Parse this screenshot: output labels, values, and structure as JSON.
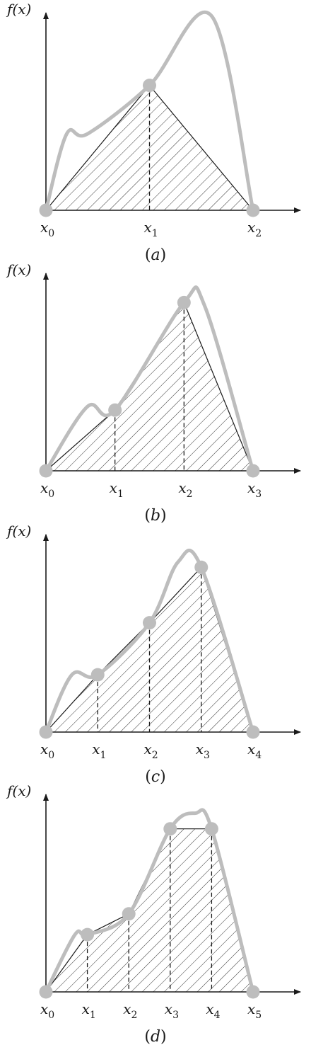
{
  "y_axis_label": "f(x)",
  "x_symbol": "x",
  "colors": {
    "curve": "#bdbdbd",
    "ink": "#1a1a1a",
    "hatch": "#333333",
    "node": "#bdbdbd"
  },
  "panels": [
    {
      "caption": "(a)",
      "curve": [
        [
          0,
          0.0
        ],
        [
          0.2,
          0.44
        ],
        [
          0.4,
          0.44
        ],
        [
          1.0,
          0.72
        ],
        [
          1.6,
          1.12
        ],
        [
          2.0,
          0.0
        ]
      ],
      "nodes": [
        {
          "sub": "0",
          "x": 0.0,
          "y": 0.0
        },
        {
          "sub": "1",
          "x": 1.0,
          "y": 0.72
        },
        {
          "sub": "2",
          "x": 2.0,
          "y": 0.0
        }
      ]
    },
    {
      "caption": "(b)",
      "curve": [
        [
          0,
          0.0
        ],
        [
          0.6,
          0.37
        ],
        [
          1.0,
          0.35
        ],
        [
          2.0,
          0.97
        ],
        [
          2.3,
          0.95
        ],
        [
          3.0,
          0.0
        ]
      ],
      "nodes": [
        {
          "sub": "0",
          "x": 0.0,
          "y": 0.0
        },
        {
          "sub": "1",
          "x": 1.0,
          "y": 0.35
        },
        {
          "sub": "2",
          "x": 2.0,
          "y": 0.97
        },
        {
          "sub": "3",
          "x": 3.0,
          "y": 0.0
        }
      ]
    },
    {
      "caption": "(c)",
      "curve": [
        [
          0,
          0.0
        ],
        [
          0.5,
          0.33
        ],
        [
          1.0,
          0.33
        ],
        [
          2.0,
          0.63
        ],
        [
          2.55,
          0.98
        ],
        [
          3.0,
          0.95
        ],
        [
          4.0,
          0.0
        ]
      ],
      "nodes": [
        {
          "sub": "0",
          "x": 0.0,
          "y": 0.0
        },
        {
          "sub": "1",
          "x": 1.0,
          "y": 0.33
        },
        {
          "sub": "2",
          "x": 2.0,
          "y": 0.63
        },
        {
          "sub": "3",
          "x": 3.0,
          "y": 0.95
        },
        {
          "sub": "4",
          "x": 4.0,
          "y": 0.0
        }
      ]
    },
    {
      "caption": "(d)",
      "curve": [
        [
          0,
          0.0
        ],
        [
          0.7,
          0.33
        ],
        [
          1.0,
          0.33
        ],
        [
          2.0,
          0.45
        ],
        [
          3.0,
          0.94
        ],
        [
          3.6,
          1.03
        ],
        [
          4.0,
          0.94
        ],
        [
          5.0,
          0.0
        ]
      ],
      "nodes": [
        {
          "sub": "0",
          "x": 0.0,
          "y": 0.0
        },
        {
          "sub": "1",
          "x": 1.0,
          "y": 0.33
        },
        {
          "sub": "2",
          "x": 2.0,
          "y": 0.45
        },
        {
          "sub": "3",
          "x": 3.0,
          "y": 0.94
        },
        {
          "sub": "4",
          "x": 4.0,
          "y": 0.94
        },
        {
          "sub": "5",
          "x": 5.0,
          "y": 0.0
        }
      ]
    }
  ]
}
